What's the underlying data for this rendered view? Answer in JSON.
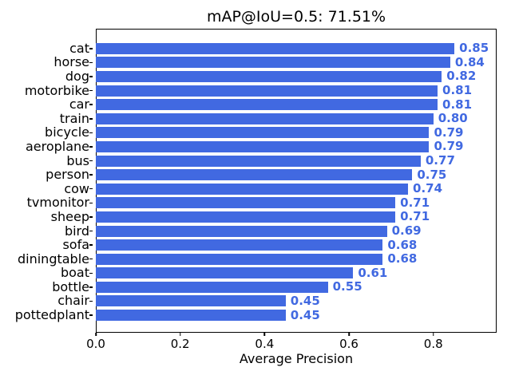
{
  "title": "mAP@IoU=0.5: 71.51%",
  "chart_data": {
    "type": "bar",
    "orientation": "horizontal",
    "title": "mAP@IoU=0.5: 71.51%",
    "xlabel": "Average Precision",
    "ylabel": "",
    "categories": [
      "cat",
      "horse",
      "dog",
      "motorbike",
      "car",
      "train",
      "bicycle",
      "aeroplane",
      "bus",
      "person",
      "cow",
      "tvmonitor",
      "sheep",
      "bird",
      "sofa",
      "diningtable",
      "boat",
      "bottle",
      "chair",
      "pottedplant"
    ],
    "values": [
      0.85,
      0.84,
      0.82,
      0.81,
      0.81,
      0.8,
      0.79,
      0.79,
      0.77,
      0.75,
      0.74,
      0.71,
      0.71,
      0.69,
      0.68,
      0.68,
      0.61,
      0.55,
      0.45,
      0.45
    ],
    "value_labels": [
      "0.85",
      "0.84",
      "0.82",
      "0.81",
      "0.81",
      "0.80",
      "0.79",
      "0.79",
      "0.77",
      "0.75",
      "0.74",
      "0.71",
      "0.71",
      "0.69",
      "0.68",
      "0.68",
      "0.61",
      "0.55",
      "0.45",
      "0.45"
    ],
    "xlim": [
      0.0,
      0.95
    ],
    "xticks": [
      0.0,
      0.2,
      0.4,
      0.6,
      0.8
    ],
    "xtick_labels": [
      "0.0",
      "0.2",
      "0.4",
      "0.6",
      "0.8"
    ],
    "grid": false,
    "legend": "none",
    "bar_color": "#4169e1",
    "value_label_color": "#4169e1",
    "mean_average_precision": "71.51%"
  }
}
